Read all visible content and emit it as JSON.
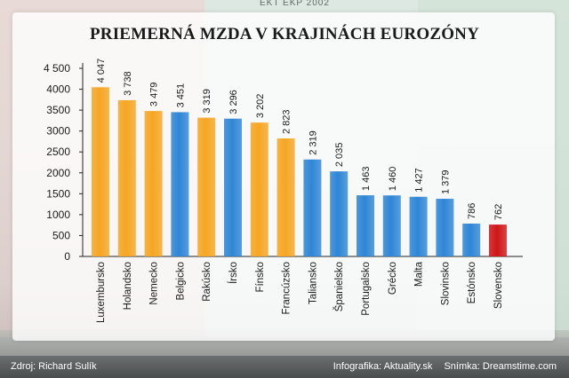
{
  "background_text": "EKT EKP 2002",
  "chart_data": {
    "type": "bar",
    "title": "PRIEMERNÁ MZDA V KRAJINÁCH EUROZÓNY",
    "xlabel": "",
    "ylabel": "",
    "ylim": [
      0,
      4500
    ],
    "yticks": [
      0,
      500,
      1000,
      1500,
      2000,
      2500,
      3000,
      3500,
      4000,
      4500
    ],
    "ytick_labels": [
      "0",
      "500",
      "1000",
      "1500",
      "2000",
      "2500",
      "3000",
      "3500",
      "4000",
      "4 500"
    ],
    "grid": false,
    "categories": [
      "Luxembursko",
      "Holandsko",
      "Nemecko",
      "Belgicko",
      "Rakúsko",
      "Írsko",
      "Fínsko",
      "Francúzsko",
      "Taliansko",
      "Španielsko",
      "Portugalsko",
      "Grécko",
      "Malta",
      "Slovinsko",
      "Estónsko",
      "Slovensko"
    ],
    "values": [
      4047,
      3738,
      3479,
      3451,
      3319,
      3296,
      3202,
      2823,
      2319,
      2035,
      1463,
      1460,
      1427,
      1379,
      786,
      762
    ],
    "value_labels": [
      "4 047",
      "3 738",
      "3 479",
      "3 451",
      "3 319",
      "3 296",
      "3 202",
      "2 823",
      "2 319",
      "2 035",
      "1 463",
      "1 460",
      "1 427",
      "1 379",
      "786",
      "762"
    ],
    "bar_colors": [
      "orange",
      "orange",
      "orange",
      "blue",
      "orange",
      "blue",
      "orange",
      "orange",
      "blue",
      "blue",
      "blue",
      "blue",
      "blue",
      "blue",
      "blue",
      "red"
    ],
    "colors": {
      "orange": "#f5a623",
      "blue": "#2f86d6",
      "red": "#d0161a"
    }
  },
  "footer": {
    "source": "Zdroj: Richard Sulík",
    "infographic": "Infografika: Aktuality.sk",
    "photo": "Snímka: Dreamstime.com"
  }
}
